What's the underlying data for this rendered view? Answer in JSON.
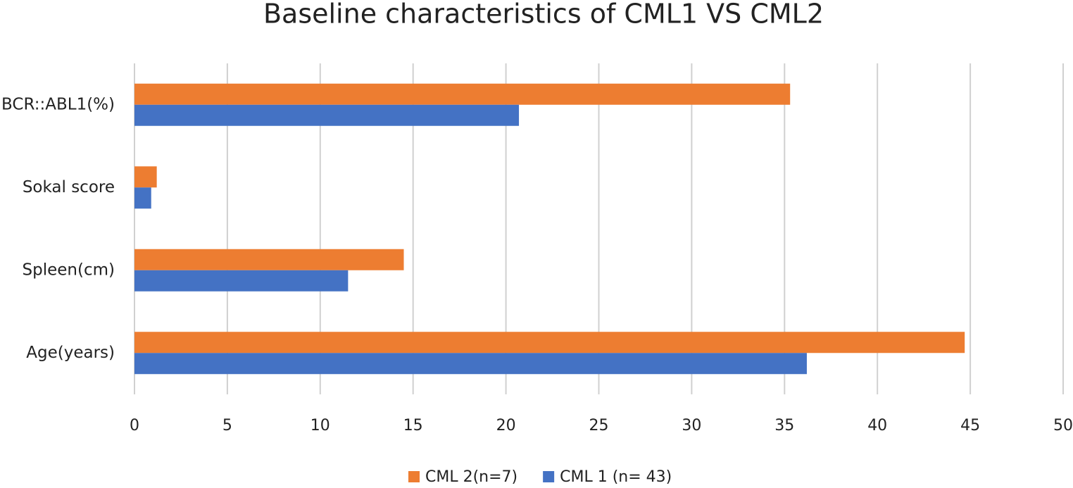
{
  "chart_data": {
    "type": "hbar",
    "title": "Baseline characteristics of CML1 VS CML2",
    "categories": [
      "Age(years)",
      "Spleen(cm)",
      "Sokal score",
      "BCR::ABL1(%)"
    ],
    "series": [
      {
        "name": "CML 2(n=7)",
        "color": "#ED7D31",
        "values": [
          44.7,
          14.5,
          1.2,
          35.3
        ]
      },
      {
        "name": "CML 1 (n= 43)",
        "color": "#4472C4",
        "values": [
          36.2,
          11.5,
          0.9,
          20.7
        ]
      }
    ],
    "xlim": [
      0,
      50
    ],
    "xticks": [
      0,
      5,
      10,
      15,
      20,
      25,
      30,
      35,
      40,
      45,
      50
    ],
    "grid": true,
    "legend": "bottom"
  }
}
